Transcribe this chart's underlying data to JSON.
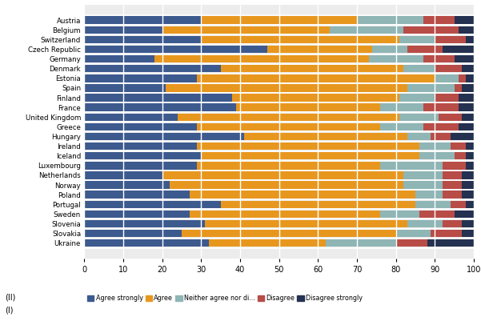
{
  "countries": [
    "Austria",
    "Belgium",
    "Switzerland",
    "Czech Republic",
    "Germany",
    "Denmark",
    "Estonia",
    "Spain",
    "Finland",
    "France",
    "United Kingdom",
    "Greece",
    "Hungary",
    "Ireland",
    "Iceland",
    "Luxembourg",
    "Netherlands",
    "Norway",
    "Poland",
    "Portugal",
    "Sweden",
    "Slovenia",
    "Slovakia",
    "Ukraine"
  ],
  "agree_strongly": [
    30,
    20,
    30,
    47,
    18,
    35,
    29,
    21,
    38,
    39,
    24,
    29,
    41,
    29,
    30,
    29,
    20,
    22,
    27,
    35,
    27,
    31,
    25,
    32
  ],
  "agree": [
    40,
    43,
    51,
    27,
    55,
    47,
    61,
    62,
    43,
    37,
    57,
    47,
    42,
    57,
    56,
    47,
    62,
    60,
    58,
    50,
    49,
    52,
    55,
    30
  ],
  "neither": [
    17,
    19,
    9,
    9,
    14,
    8,
    6,
    12,
    9,
    11,
    10,
    11,
    6,
    8,
    9,
    16,
    10,
    10,
    7,
    9,
    10,
    9,
    9,
    18
  ],
  "disagree": [
    8,
    14,
    8,
    9,
    8,
    7,
    2,
    2,
    6,
    9,
    6,
    9,
    5,
    4,
    3,
    6,
    5,
    5,
    5,
    4,
    9,
    5,
    8,
    8
  ],
  "disagree_strongly": [
    5,
    4,
    2,
    8,
    5,
    3,
    2,
    3,
    4,
    4,
    3,
    4,
    6,
    2,
    2,
    2,
    3,
    3,
    3,
    2,
    5,
    3,
    3,
    12
  ],
  "colors": [
    "#3d5a8e",
    "#e8971e",
    "#8fb5b5",
    "#b84c47",
    "#243151"
  ],
  "legend_labels": [
    "Agree strongly",
    "Agree",
    "Neither agree nor di...",
    "Disagree",
    "Disagree strongly"
  ],
  "note1": "(II)",
  "note2": "(I)",
  "xlim": [
    0,
    100
  ],
  "xticks": [
    0,
    10,
    20,
    30,
    40,
    50,
    60,
    70,
    80,
    90,
    100
  ],
  "bar_height": 0.78,
  "figsize": [
    6.01,
    4.01
  ],
  "dpi": 100
}
